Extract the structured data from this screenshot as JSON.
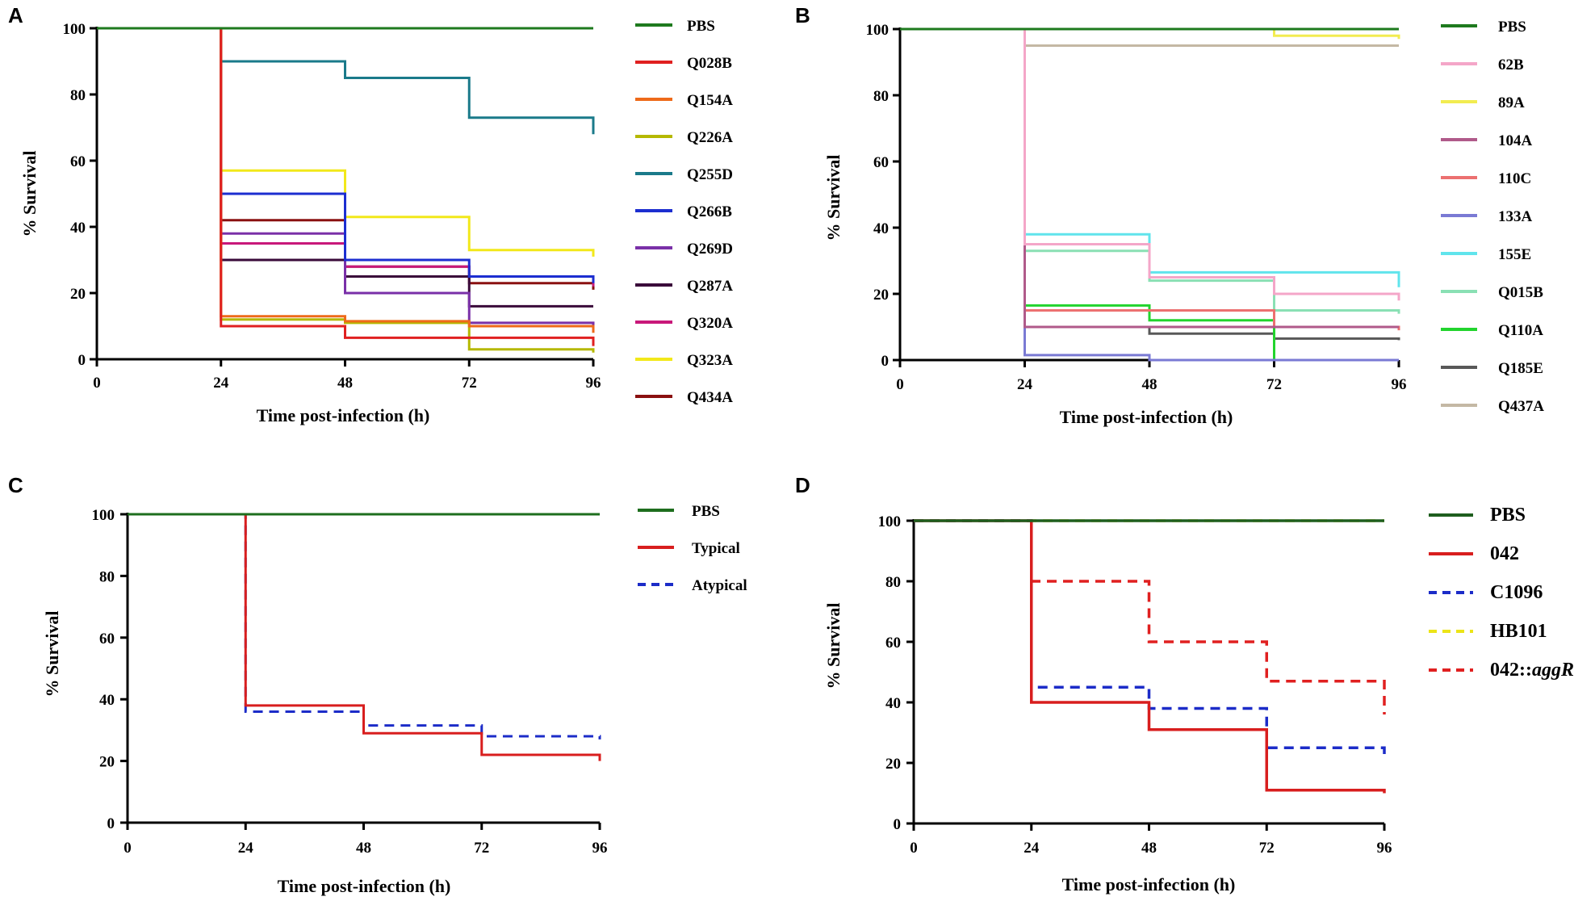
{
  "chart_data": [
    {
      "panel": "A",
      "type": "line",
      "subtype": "step",
      "xlabel": "Time post-infection (h)",
      "ylabel": "% Survival",
      "xticks": [
        0,
        24,
        48,
        72,
        96
      ],
      "yticks": [
        0,
        20,
        40,
        60,
        80,
        100
      ],
      "xlim": [
        0,
        96
      ],
      "ylim": [
        0,
        100
      ],
      "series": [
        {
          "name": "PBS",
          "color": "#1e7a1e",
          "dash": false,
          "x": [
            0,
            24,
            48,
            72,
            96
          ],
          "y": [
            100,
            100,
            100,
            100,
            100
          ]
        },
        {
          "name": "Q028B",
          "color": "#e02020",
          "dash": false,
          "x": [
            0,
            24,
            48,
            72,
            96
          ],
          "y": [
            100,
            10,
            6.5,
            6.5,
            4
          ]
        },
        {
          "name": "Q154A",
          "color": "#ee6a1a",
          "dash": false,
          "x": [
            0,
            24,
            48,
            72,
            96
          ],
          "y": [
            100,
            13,
            11.5,
            10,
            8
          ]
        },
        {
          "name": "Q226A",
          "color": "#b5b800",
          "dash": false,
          "x": [
            0,
            24,
            48,
            72,
            96
          ],
          "y": [
            100,
            12,
            11,
            3,
            2
          ]
        },
        {
          "name": "Q255D",
          "color": "#1a7a8a",
          "dash": false,
          "x": [
            0,
            24,
            48,
            72,
            96
          ],
          "y": [
            100,
            90,
            85,
            73,
            68
          ]
        },
        {
          "name": "Q266B",
          "color": "#1c2ed0",
          "dash": false,
          "x": [
            0,
            24,
            48,
            72,
            96
          ],
          "y": [
            100,
            50,
            30,
            25,
            23
          ]
        },
        {
          "name": "Q269D",
          "color": "#7a30a8",
          "dash": false,
          "x": [
            0,
            24,
            48,
            72,
            96
          ],
          "y": [
            100,
            38,
            20,
            11,
            10
          ]
        },
        {
          "name": "Q287A",
          "color": "#3a0a3a",
          "dash": false,
          "x": [
            0,
            24,
            48,
            72,
            96
          ],
          "y": [
            100,
            30,
            25,
            16,
            16
          ]
        },
        {
          "name": "Q320A",
          "color": "#c8187a",
          "dash": false,
          "x": [
            0,
            24,
            48,
            72,
            96
          ],
          "y": [
            100,
            35,
            28,
            25,
            22
          ]
        },
        {
          "name": "Q323A",
          "color": "#f2e81a",
          "dash": false,
          "x": [
            0,
            24,
            48,
            72,
            96
          ],
          "y": [
            100,
            57,
            43,
            33,
            31
          ]
        },
        {
          "name": "Q434A",
          "color": "#8a1010",
          "dash": false,
          "x": [
            0,
            24,
            48,
            72,
            96
          ],
          "y": [
            100,
            42,
            28,
            23,
            21
          ]
        }
      ]
    },
    {
      "panel": "B",
      "type": "line",
      "subtype": "step",
      "xlabel": "Time post-infection (h)",
      "ylabel": "% Survival",
      "xticks": [
        0,
        24,
        48,
        72,
        96
      ],
      "yticks": [
        0,
        20,
        40,
        60,
        80,
        100
      ],
      "xlim": [
        0,
        96
      ],
      "ylim": [
        0,
        100
      ],
      "series": [
        {
          "name": "PBS",
          "color": "#1e7a1e",
          "dash": false,
          "x": [
            0,
            24,
            48,
            72,
            96
          ],
          "y": [
            100,
            100,
            100,
            100,
            100
          ]
        },
        {
          "name": "62B",
          "color": "#f4a6c8",
          "dash": false,
          "x": [
            0,
            24,
            48,
            72,
            96
          ],
          "y": [
            100,
            35,
            25,
            20,
            18
          ]
        },
        {
          "name": "89A",
          "color": "#f2ec50",
          "dash": false,
          "x": [
            0,
            24,
            48,
            72,
            96
          ],
          "y": [
            100,
            100,
            100,
            98,
            97
          ]
        },
        {
          "name": "104A",
          "color": "#b05a8a",
          "dash": false,
          "x": [
            0,
            24,
            48,
            72,
            96
          ],
          "y": [
            100,
            10,
            10,
            10,
            10
          ]
        },
        {
          "name": "110C",
          "color": "#ec7070",
          "dash": false,
          "x": [
            0,
            24,
            48,
            72,
            96
          ],
          "y": [
            100,
            15,
            15,
            10,
            9
          ]
        },
        {
          "name": "133A",
          "color": "#7a7ad4",
          "dash": false,
          "x": [
            0,
            24,
            48,
            72,
            96
          ],
          "y": [
            100,
            1.5,
            0,
            0,
            0
          ]
        },
        {
          "name": "155E",
          "color": "#60e4ec",
          "dash": false,
          "x": [
            0,
            24,
            48,
            72,
            96
          ],
          "y": [
            100,
            38,
            26.5,
            26.5,
            22
          ]
        },
        {
          "name": "Q015B",
          "color": "#8ae0b4",
          "dash": false,
          "x": [
            0,
            24,
            48,
            72,
            96
          ],
          "y": [
            100,
            33,
            24,
            15,
            14
          ]
        },
        {
          "name": "Q110A",
          "color": "#22d42e",
          "dash": false,
          "x": [
            0,
            24,
            48,
            72,
            96
          ],
          "y": [
            100,
            16.5,
            12,
            0,
            0
          ]
        },
        {
          "name": "Q185E",
          "color": "#585858",
          "dash": false,
          "x": [
            0,
            24,
            48,
            72,
            96
          ],
          "y": [
            100,
            10,
            8,
            6.5,
            6
          ]
        },
        {
          "name": "Q437A",
          "color": "#c4b8a4",
          "dash": false,
          "x": [
            0,
            24,
            48,
            72,
            96
          ],
          "y": [
            100,
            95,
            95,
            95,
            95
          ]
        }
      ]
    },
    {
      "panel": "C",
      "type": "line",
      "subtype": "step",
      "xlabel": "Time post-infection (h)",
      "ylabel": "% Survival",
      "xticks": [
        0,
        24,
        48,
        72,
        96
      ],
      "yticks": [
        0,
        20,
        40,
        60,
        80,
        100
      ],
      "xlim": [
        0,
        96
      ],
      "ylim": [
        0,
        100
      ],
      "series": [
        {
          "name": "PBS",
          "color": "#1e6e1e",
          "dash": false,
          "x": [
            0,
            24,
            48,
            72,
            96
          ],
          "y": [
            100,
            100,
            100,
            100,
            100
          ]
        },
        {
          "name": "Typical",
          "color": "#d81e1e",
          "dash": false,
          "x": [
            0,
            24,
            48,
            72,
            96
          ],
          "y": [
            100,
            38,
            29,
            22,
            20
          ]
        },
        {
          "name": "Atypical",
          "color": "#1c2cc8",
          "dash": true,
          "x": [
            0,
            24,
            48,
            72,
            96
          ],
          "y": [
            100,
            36,
            31.5,
            28,
            27
          ]
        }
      ]
    },
    {
      "panel": "D",
      "type": "line",
      "subtype": "step",
      "xlabel": "Time post-infection (h)",
      "ylabel": "% Survival",
      "xticks": [
        0,
        24,
        48,
        72,
        96
      ],
      "yticks": [
        0,
        20,
        40,
        60,
        80,
        100
      ],
      "xlim": [
        0,
        96
      ],
      "ylim": [
        0,
        100
      ],
      "series": [
        {
          "name": "PBS",
          "color": "#1e5e1e",
          "dash": false,
          "x": [
            0,
            24,
            48,
            72,
            96
          ],
          "y": [
            100,
            100,
            100,
            100,
            100
          ]
        },
        {
          "name": "042",
          "color": "#d81e1e",
          "dash": false,
          "x": [
            0,
            24,
            48,
            72,
            96
          ],
          "y": [
            100,
            40,
            31,
            11,
            10
          ]
        },
        {
          "name": "C1096",
          "color": "#1c2cc8",
          "dash": true,
          "x": [
            0,
            24,
            48,
            72,
            96
          ],
          "y": [
            100,
            45,
            38,
            25,
            22
          ]
        },
        {
          "name": "HB101",
          "color": "#ece418",
          "dash": true,
          "x": [
            0,
            24,
            48,
            72,
            96
          ],
          "y": [
            100,
            100,
            100,
            100,
            100
          ]
        },
        {
          "name": "042::aggR",
          "name_prefix": "042::",
          "name_italic": "aggR",
          "color": "#e02020",
          "dash": true,
          "x": [
            0,
            24,
            48,
            72,
            96
          ],
          "y": [
            100,
            80,
            60,
            47,
            36
          ]
        }
      ]
    }
  ]
}
